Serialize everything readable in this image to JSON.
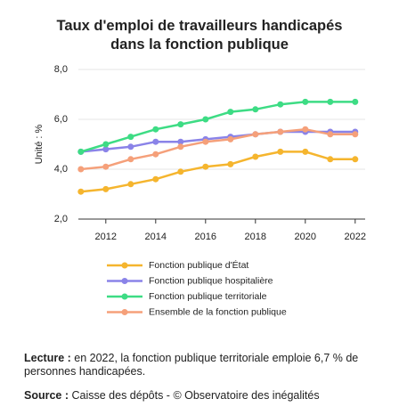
{
  "chart_data": {
    "type": "line",
    "title": "Taux d'emploi de travailleurs handicapés dans la fonction publique",
    "y_label": "Unité : %",
    "x": [
      2011,
      2012,
      2013,
      2014,
      2015,
      2016,
      2017,
      2018,
      2019,
      2020,
      2021,
      2022
    ],
    "xlim": [
      2010.9,
      2022.4
    ],
    "xticks": [
      2012,
      2014,
      2016,
      2018,
      2020,
      2022
    ],
    "ylim": [
      2,
      8
    ],
    "yticks": [
      {
        "value": 2,
        "label": "2,0"
      },
      {
        "value": 4,
        "label": "4,0"
      },
      {
        "value": 6,
        "label": "6,0"
      },
      {
        "value": 8,
        "label": "8,0"
      }
    ],
    "grid": true,
    "legend": "bottom",
    "series": [
      {
        "name": "Fonction publique d'État",
        "color": "#f5b52e",
        "values": [
          3.1,
          3.2,
          3.4,
          3.6,
          3.9,
          4.1,
          4.2,
          4.5,
          4.7,
          4.7,
          4.4,
          4.4
        ]
      },
      {
        "name": "Fonction publique hospitalière",
        "color": "#8a83e8",
        "values": [
          4.7,
          4.8,
          4.9,
          5.1,
          5.1,
          5.2,
          5.3,
          5.4,
          5.5,
          5.5,
          5.5,
          5.5
        ]
      },
      {
        "name": "Fonction publique territoriale",
        "color": "#3ddc84",
        "values": [
          4.7,
          5.0,
          5.3,
          5.6,
          5.8,
          6.0,
          6.3,
          6.4,
          6.6,
          6.7,
          6.7,
          6.7
        ]
      },
      {
        "name": "Ensemble de la fonction publique",
        "color": "#f5a07a",
        "values": [
          4.0,
          4.1,
          4.4,
          4.6,
          4.9,
          5.1,
          5.2,
          5.4,
          5.5,
          5.6,
          5.4,
          5.4
        ]
      }
    ]
  },
  "notes": {
    "lecture": {
      "label": "Lecture :",
      "text": "en 2022, la fonction publique territoriale emploie 6,7 % de personnes handicapées."
    },
    "source": {
      "label": "Source :",
      "text": "Caisse des dépôts - © Observatoire des inégalités"
    }
  }
}
